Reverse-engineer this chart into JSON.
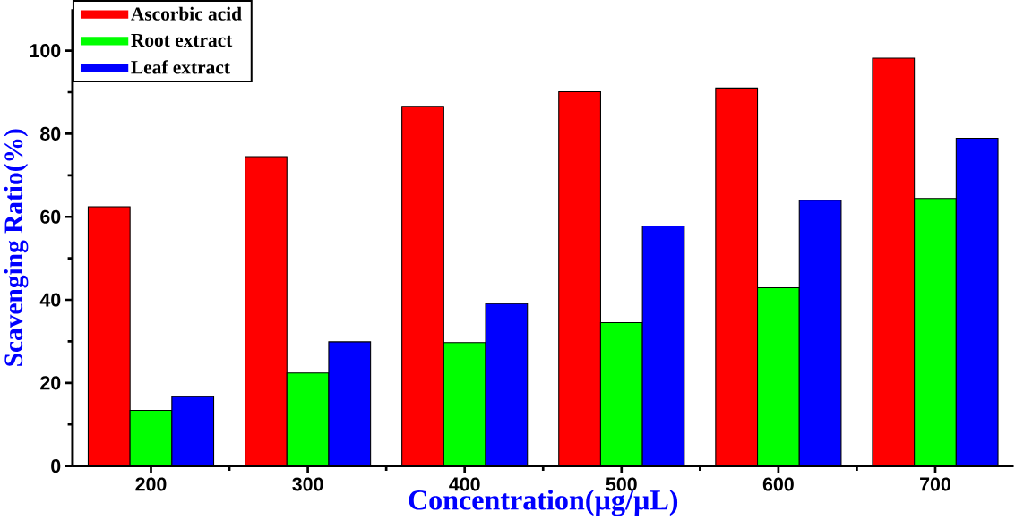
{
  "chart_data": {
    "type": "bar",
    "xlabel": "Concentration(µg/µL)",
    "ylabel": "Scavenging Ratio(%)",
    "categories": [
      "200",
      "300",
      "400",
      "500",
      "600",
      "700"
    ],
    "series": [
      {
        "name": "Ascorbic acid",
        "color": "#ff0000",
        "values": [
          62.4,
          74.5,
          86.6,
          90.1,
          91.0,
          98.2
        ]
      },
      {
        "name": "Root extract",
        "color": "#00ff00",
        "values": [
          13.4,
          22.4,
          29.7,
          34.5,
          42.9,
          64.4
        ]
      },
      {
        "name": "Leaf extract",
        "color": "#0000ff",
        "values": [
          16.7,
          29.9,
          39.1,
          57.8,
          64.0,
          78.9
        ]
      }
    ],
    "ylim": [
      0,
      110
    ],
    "yticks": [
      0,
      20,
      40,
      60,
      80,
      100
    ],
    "legend": "top left",
    "grid": false
  }
}
